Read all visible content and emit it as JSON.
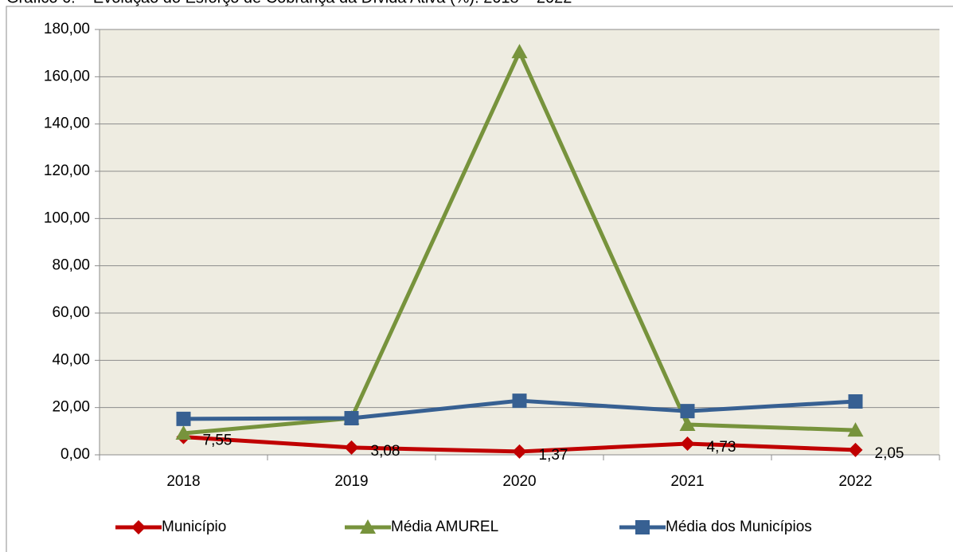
{
  "chart_data": {
    "type": "line",
    "title": "Gráfico 6: – Evolução do Esforço de Cobrança da Dívida Ativa (%): 2018 – 2022",
    "categories": [
      "2018",
      "2019",
      "2020",
      "2021",
      "2022"
    ],
    "series": [
      {
        "name": "Município",
        "color": "#c00000",
        "marker": "diamond",
        "values": [
          7.55,
          3.08,
          1.37,
          4.73,
          2.05
        ],
        "value_labels": [
          "7,55",
          "3,08",
          "1,37",
          "4,73",
          "2,05"
        ]
      },
      {
        "name": "Média AMUREL",
        "color": "#77933c",
        "marker": "triangle",
        "values": [
          9.1,
          15.5,
          170.5,
          12.8,
          10.4
        ]
      },
      {
        "name": "Média dos Municípios",
        "color": "#376092",
        "marker": "square",
        "values": [
          15.2,
          15.5,
          22.9,
          18.5,
          22.6
        ]
      }
    ],
    "ylim": [
      0,
      180
    ],
    "yticks": [
      {
        "value": 0,
        "label": "0,00"
      },
      {
        "value": 20,
        "label": "20,00"
      },
      {
        "value": 40,
        "label": "40,00"
      },
      {
        "value": 60,
        "label": "60,00"
      },
      {
        "value": 80,
        "label": "80,00"
      },
      {
        "value": 100,
        "label": "100,00"
      },
      {
        "value": 120,
        "label": "120,00"
      },
      {
        "value": 140,
        "label": "140,00"
      },
      {
        "value": 160,
        "label": "160,00"
      },
      {
        "value": 180,
        "label": "180,00"
      }
    ],
    "grid": true,
    "legend": "bottom"
  }
}
